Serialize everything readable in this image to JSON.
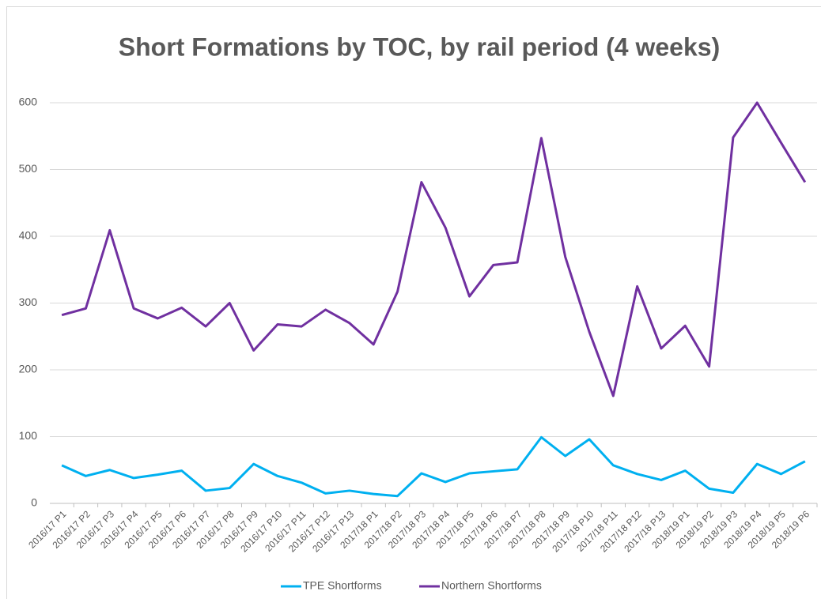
{
  "chart_data": {
    "type": "line",
    "title": "Short Formations by TOC, by rail period (4 weeks)",
    "categories": [
      "2016/17 P1",
      "2016/17 P2",
      "2016/17 P3",
      "2016/17 P4",
      "2016/17 P5",
      "2016/17 P6",
      "2016/17 P7",
      "2016/17 P8",
      "2016/17 P9",
      "2016/17 P10",
      "2016/17 P11",
      "2016/17 P12",
      "2016/17 P13",
      "2017/18 P1",
      "2017/18 P2",
      "2017/18 P3",
      "2017/18 P4",
      "2017/18 P5",
      "2017/18 P6",
      "2017/18 P7",
      "2017/18 P8",
      "2017/18 P9",
      "2017/18 P10",
      "2017/18 P11",
      "2017/18 P12",
      "2017/18 P13",
      "2018/19 P1",
      "2018/19 P2",
      "2018/19 P3",
      "2018/19 P4",
      "2018/19 P5",
      "2018/19 P6"
    ],
    "series": [
      {
        "name": "TPE Shortforms",
        "color": "#00b0f0",
        "values": [
          57,
          41,
          50,
          38,
          43,
          49,
          19,
          23,
          59,
          41,
          31,
          15,
          19,
          14,
          11,
          45,
          32,
          45,
          48,
          51,
          99,
          71,
          96,
          57,
          44,
          35,
          49,
          22,
          16,
          59,
          44,
          63
        ]
      },
      {
        "name": "Northern Shortforms",
        "color": "#7030a0",
        "values": [
          282,
          292,
          409,
          292,
          277,
          293,
          265,
          300,
          229,
          268,
          265,
          290,
          270,
          238,
          317,
          481,
          413,
          310,
          357,
          361,
          547,
          369,
          257,
          161,
          325,
          232,
          266,
          205,
          548,
          600,
          540,
          481
        ]
      }
    ],
    "ylim": [
      0,
      600
    ],
    "yticks": [
      0,
      100,
      200,
      300,
      400,
      500,
      600
    ],
    "grid": true,
    "legend": "bottom"
  }
}
